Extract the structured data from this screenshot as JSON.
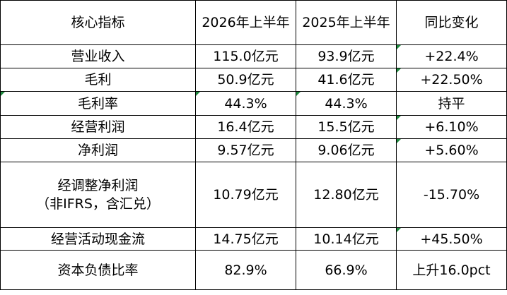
{
  "table": {
    "headers": [
      "核心指标",
      "2026年上半年",
      "2025年上半年",
      "同比变化"
    ],
    "rows": [
      {
        "metric": "营业收入",
        "h1_2026": "115.0亿元",
        "h1_2025": "93.9亿元",
        "yoy": "+22.4%"
      },
      {
        "metric": "毛利",
        "h1_2026": "50.9亿元",
        "h1_2025": "41.6亿元",
        "yoy": "+22.50%"
      },
      {
        "metric": "毛利率",
        "h1_2026": "44.3%",
        "h1_2025": "44.3%",
        "yoy": "持平"
      },
      {
        "metric": "经营利润",
        "h1_2026": "16.4亿元",
        "h1_2025": "15.5亿元",
        "yoy": "+6.10%"
      },
      {
        "metric": "净利润",
        "h1_2026": "9.57亿元",
        "h1_2025": "9.06亿元",
        "yoy": "+5.60%"
      },
      {
        "metric_line1": "经调整净利润",
        "metric_line2": "（非IFRS，含汇兑）",
        "h1_2026": "10.79亿元",
        "h1_2025": "12.80亿元",
        "yoy": "-15.70%"
      },
      {
        "metric": "经营活动现金流",
        "h1_2026": "14.75亿元",
        "h1_2025": "10.14亿元",
        "yoy": "+45.50%"
      },
      {
        "metric": "资本负债比率",
        "h1_2026": "82.9%",
        "h1_2025": "66.9%",
        "yoy": "上升16.0pct"
      }
    ]
  },
  "colors": {
    "border": "#000000",
    "cell_flag": "#1e8a3e",
    "background": "#ffffff"
  }
}
